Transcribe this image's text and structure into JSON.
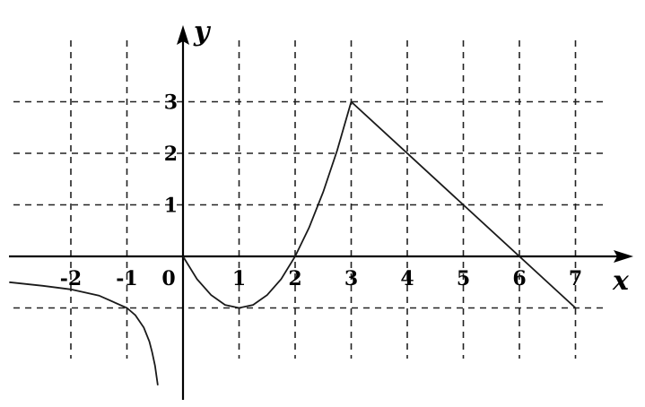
{
  "chart_data": {
    "type": "line",
    "title": "",
    "xlabel": "x",
    "ylabel": "y",
    "origin_label": "0",
    "xlim": [
      -3.1,
      7.7
    ],
    "ylim": [
      -2.7,
      4.3
    ],
    "grid": true,
    "x_ticks": [
      {
        "value": -2,
        "label": "-2"
      },
      {
        "value": -1,
        "label": "-1"
      },
      {
        "value": 1,
        "label": "1"
      },
      {
        "value": 2,
        "label": "2"
      },
      {
        "value": 3,
        "label": "3"
      },
      {
        "value": 4,
        "label": "4"
      },
      {
        "value": 5,
        "label": "5"
      },
      {
        "value": 6,
        "label": "6"
      },
      {
        "value": 7,
        "label": "7"
      }
    ],
    "y_ticks": [
      {
        "value": 1,
        "label": "1"
      },
      {
        "value": 2,
        "label": "2"
      },
      {
        "value": 3,
        "label": "3"
      }
    ],
    "grid_x": [
      -2,
      -1,
      1,
      2,
      3,
      4,
      5,
      6,
      7
    ],
    "grid_y": [
      -1,
      1,
      2,
      3
    ],
    "series": [
      {
        "x": [
          -3.1,
          -2.5,
          -2,
          -1.5,
          -1,
          -0.85,
          -0.7,
          -0.6,
          -0.55,
          -0.5,
          -0.45
        ],
        "y": [
          -0.5,
          -0.57,
          -0.64,
          -0.76,
          -1.0,
          -1.14,
          -1.38,
          -1.65,
          -1.86,
          -2.12,
          -2.5
        ]
      },
      {
        "x": [
          0,
          0.25,
          0.5,
          0.75,
          1,
          1.25,
          1.5,
          1.75,
          2,
          2.25,
          2.5,
          2.75,
          3
        ],
        "y": [
          0,
          -0.44,
          -0.75,
          -0.94,
          -1.0,
          -0.94,
          -0.75,
          -0.44,
          0,
          0.56,
          1.25,
          2.06,
          3
        ]
      },
      {
        "x": [
          3,
          7
        ],
        "y": [
          3,
          -1
        ]
      }
    ]
  }
}
